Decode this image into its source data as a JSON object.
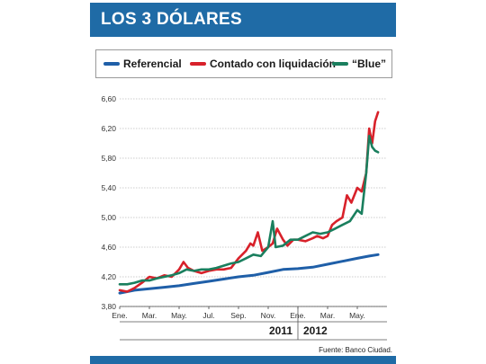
{
  "header": {
    "title": "LOS 3 DÓLARES"
  },
  "legend": [
    {
      "label": "Referencial",
      "color": "#1f5fa8"
    },
    {
      "label": "Contado con liquidación",
      "color": "#d8212a"
    },
    {
      "label": "“Blue”",
      "color": "#1a7f5e"
    }
  ],
  "source": "Fuente: Banco Ciudad.",
  "chart_data": {
    "type": "line",
    "ylim": [
      3.8,
      6.6
    ],
    "yticks": [
      "3,80",
      "4,20",
      "4,60",
      "5,00",
      "5,40",
      "5,80",
      "6,20",
      "6,60"
    ],
    "ytick_values": [
      3.8,
      4.2,
      4.6,
      5.0,
      5.4,
      5.8,
      6.2,
      6.6
    ],
    "xticks": [
      "Ene.",
      "Mar.",
      "May.",
      "Jul.",
      "Sep.",
      "Nov.",
      "Ene.",
      "Mar.",
      "May."
    ],
    "xtick_positions": [
      0,
      2,
      4,
      6,
      8,
      10,
      12,
      14,
      16
    ],
    "years": [
      {
        "label": "2011",
        "from": 0,
        "to": 12
      },
      {
        "label": "2012",
        "from": 12,
        "to": 18
      }
    ],
    "xlim": [
      0,
      18
    ],
    "series": [
      {
        "name": "Referencial",
        "color": "#1f5fa8",
        "points": [
          [
            0,
            3.98
          ],
          [
            1,
            4.02
          ],
          [
            2,
            4.04
          ],
          [
            3,
            4.06
          ],
          [
            4,
            4.08
          ],
          [
            5,
            4.11
          ],
          [
            6,
            4.14
          ],
          [
            7,
            4.17
          ],
          [
            8,
            4.2
          ],
          [
            9,
            4.22
          ],
          [
            10,
            4.26
          ],
          [
            11,
            4.3
          ],
          [
            12,
            4.31
          ],
          [
            13,
            4.33
          ],
          [
            14,
            4.37
          ],
          [
            15,
            4.41
          ],
          [
            16,
            4.45
          ],
          [
            16.8,
            4.48
          ],
          [
            17.4,
            4.5
          ]
        ]
      },
      {
        "name": "Contado con liquidación",
        "color": "#d8212a",
        "points": [
          [
            0,
            4.02
          ],
          [
            0.5,
            4.0
          ],
          [
            1,
            4.05
          ],
          [
            1.5,
            4.12
          ],
          [
            2,
            4.2
          ],
          [
            2.5,
            4.18
          ],
          [
            3,
            4.22
          ],
          [
            3.5,
            4.2
          ],
          [
            4,
            4.3
          ],
          [
            4.3,
            4.4
          ],
          [
            4.6,
            4.32
          ],
          [
            5,
            4.28
          ],
          [
            5.5,
            4.25
          ],
          [
            6,
            4.28
          ],
          [
            6.5,
            4.3
          ],
          [
            7,
            4.3
          ],
          [
            7.5,
            4.32
          ],
          [
            8,
            4.45
          ],
          [
            8.5,
            4.55
          ],
          [
            8.8,
            4.65
          ],
          [
            9,
            4.62
          ],
          [
            9.3,
            4.8
          ],
          [
            9.6,
            4.55
          ],
          [
            10,
            4.6
          ],
          [
            10.3,
            4.65
          ],
          [
            10.6,
            4.85
          ],
          [
            11,
            4.7
          ],
          [
            11.3,
            4.62
          ],
          [
            11.7,
            4.7
          ],
          [
            12,
            4.7
          ],
          [
            12.5,
            4.68
          ],
          [
            13,
            4.72
          ],
          [
            13.3,
            4.75
          ],
          [
            13.7,
            4.72
          ],
          [
            14,
            4.75
          ],
          [
            14.3,
            4.9
          ],
          [
            14.6,
            4.95
          ],
          [
            15,
            5.0
          ],
          [
            15.3,
            5.3
          ],
          [
            15.6,
            5.2
          ],
          [
            16,
            5.4
          ],
          [
            16.3,
            5.35
          ],
          [
            16.6,
            5.6
          ],
          [
            16.8,
            6.2
          ],
          [
            17.0,
            6.0
          ],
          [
            17.2,
            6.3
          ],
          [
            17.4,
            6.42
          ]
        ]
      },
      {
        "name": "“Blue”",
        "color": "#1a7f5e",
        "points": [
          [
            0,
            4.1
          ],
          [
            0.5,
            4.1
          ],
          [
            1,
            4.12
          ],
          [
            1.5,
            4.15
          ],
          [
            2,
            4.15
          ],
          [
            2.5,
            4.18
          ],
          [
            3,
            4.2
          ],
          [
            3.5,
            4.22
          ],
          [
            4,
            4.25
          ],
          [
            4.5,
            4.3
          ],
          [
            5,
            4.28
          ],
          [
            5.5,
            4.3
          ],
          [
            6,
            4.3
          ],
          [
            6.5,
            4.32
          ],
          [
            7,
            4.35
          ],
          [
            7.5,
            4.38
          ],
          [
            8,
            4.4
          ],
          [
            8.5,
            4.45
          ],
          [
            9,
            4.5
          ],
          [
            9.5,
            4.48
          ],
          [
            10,
            4.6
          ],
          [
            10.3,
            4.95
          ],
          [
            10.5,
            4.6
          ],
          [
            11,
            4.62
          ],
          [
            11.5,
            4.7
          ],
          [
            12,
            4.7
          ],
          [
            12.5,
            4.75
          ],
          [
            13,
            4.8
          ],
          [
            13.5,
            4.78
          ],
          [
            14,
            4.8
          ],
          [
            14.5,
            4.85
          ],
          [
            15,
            4.9
          ],
          [
            15.5,
            4.95
          ],
          [
            16,
            5.1
          ],
          [
            16.3,
            5.05
          ],
          [
            16.6,
            5.6
          ],
          [
            16.8,
            6.1
          ],
          [
            17.0,
            5.95
          ],
          [
            17.2,
            5.9
          ],
          [
            17.4,
            5.88
          ]
        ]
      }
    ]
  }
}
